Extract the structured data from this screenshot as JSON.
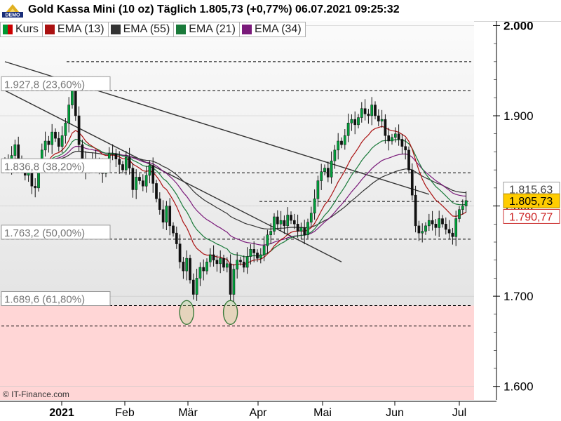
{
  "header": {
    "logo_text": "DEMO",
    "title": "Gold Kassa Mini (10 oz) Täglich 1.805,73 (+0,77%) 06.07.2021 09:25:32"
  },
  "legend": [
    {
      "label": "Kurs",
      "color": "#cc0000",
      "color2": "#009933",
      "icon": "candle-swatch-icon"
    },
    {
      "label": "EMA (13)",
      "color": "#aa1111",
      "icon": "line-swatch-icon"
    },
    {
      "label": "EMA (55)",
      "color": "#333333",
      "icon": "line-swatch-icon"
    },
    {
      "label": "EMA (21)",
      "color": "#1a7a3a",
      "icon": "line-swatch-icon"
    },
    {
      "label": "EMA (34)",
      "color": "#7a1a7a",
      "icon": "line-swatch-icon"
    }
  ],
  "watermark": "© IT-Finance.com",
  "chart_data": {
    "type": "candlestick",
    "y_axis": {
      "min": 1585,
      "max": 2005,
      "ticks": [
        1600,
        1700,
        1800,
        1900,
        2000
      ],
      "tick_labels": [
        "1.600",
        "1.700",
        "1.800",
        "1.900",
        "2.000"
      ]
    },
    "x_axis": {
      "labels": [
        "2021",
        "Feb",
        "Mär",
        "Apr",
        "Mai",
        "Jun",
        "Jul"
      ],
      "label_months": [
        0,
        1,
        2,
        3,
        4,
        5,
        6
      ]
    },
    "fib_levels": [
      {
        "value": 1927.8,
        "label": "1.927,8 (23,60%)"
      },
      {
        "value": 1836.8,
        "label": "1.836,8 (38,20%)"
      },
      {
        "value": 1763.2,
        "label": "1.763,2 (50,00%)"
      },
      {
        "value": 1689.6,
        "label": "1.689,6 (61,80%)"
      }
    ],
    "price_labels": [
      {
        "value": 1815.63,
        "label": "1.815,63",
        "style": "plain"
      },
      {
        "value": 1805.73,
        "label": "1.805,73",
        "style": "current"
      },
      {
        "value": 1790.77,
        "label": "1.790,77",
        "style": "red"
      }
    ],
    "support_zone": {
      "from": 1585,
      "to": 1689.6,
      "color": "#ffd6d6"
    },
    "dashed_lines": [
      1960,
      1927.8,
      1836.8,
      1805,
      1763.2,
      1689.6,
      1667
    ],
    "trendlines": [
      {
        "from": {
          "t": 0,
          "v": 1960
        },
        "to": {
          "t": 126,
          "v": 1813
        }
      },
      {
        "from": {
          "t": 0,
          "v": 1928
        },
        "to": {
          "t": 100,
          "v": 1738
        }
      }
    ],
    "circles": [
      {
        "t": 54,
        "v": 1682
      },
      {
        "t": 67,
        "v": 1682
      }
    ],
    "series": {
      "closes": [
        1850,
        1842,
        1856,
        1868,
        1852,
        1844,
        1834,
        1838,
        1822,
        1820,
        1845,
        1862,
        1872,
        1868,
        1882,
        1875,
        1866,
        1878,
        1892,
        1912,
        1930,
        1900,
        1868,
        1852,
        1840,
        1848,
        1852,
        1848,
        1844,
        1836,
        1848,
        1858,
        1858,
        1852,
        1846,
        1840,
        1854,
        1842,
        1818,
        1832,
        1828,
        1822,
        1834,
        1845,
        1825,
        1808,
        1796,
        1782,
        1800,
        1778,
        1770,
        1758,
        1738,
        1728,
        1742,
        1718,
        1702,
        1720,
        1732,
        1728,
        1738,
        1746,
        1740,
        1736,
        1742,
        1732,
        1736,
        1702,
        1730,
        1740,
        1738,
        1732,
        1744,
        1752,
        1748,
        1742,
        1746,
        1756,
        1768,
        1772,
        1788,
        1780,
        1784,
        1778,
        1790,
        1784,
        1780,
        1772,
        1776,
        1768,
        1782,
        1792,
        1808,
        1828,
        1838,
        1842,
        1832,
        1850,
        1862,
        1872,
        1868,
        1878,
        1892,
        1896,
        1890,
        1898,
        1908,
        1902,
        1900,
        1912,
        1900,
        1894,
        1896,
        1878,
        1872,
        1876,
        1880,
        1874,
        1866,
        1862,
        1840,
        1812,
        1778,
        1770,
        1772,
        1778,
        1784,
        1780,
        1776,
        1786,
        1780,
        1774,
        1770,
        1766,
        1786,
        1796,
        1800,
        1806
      ]
    }
  }
}
